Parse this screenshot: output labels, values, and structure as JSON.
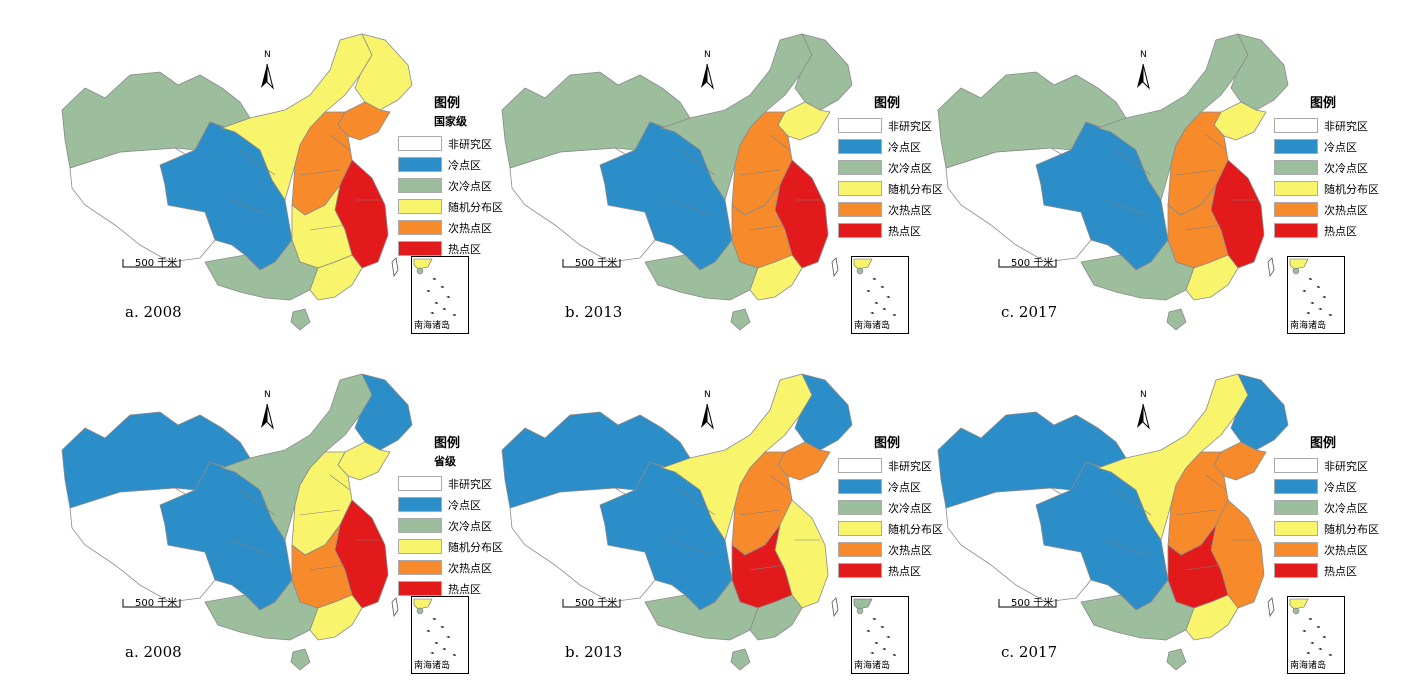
{
  "colors": {
    "non_study": "#ffffff",
    "cold": "#2b8ec8",
    "sub_cold": "#9dbe9c",
    "random": "#f8f56c",
    "sub_hot": "#f78a2b",
    "hot": "#e31a1c",
    "border": "#8a8a8a"
  },
  "legend": {
    "title": "图例",
    "items": [
      {
        "label": "非研究区",
        "class": "non_study"
      },
      {
        "label": "冷点区",
        "class": "cold"
      },
      {
        "label": "次冷点区",
        "class": "sub_cold"
      },
      {
        "label": "随机分布区",
        "class": "random"
      },
      {
        "label": "次热点区",
        "class": "sub_hot"
      },
      {
        "label": "热点区",
        "class": "hot"
      }
    ]
  },
  "north_label": "N",
  "scale_label": "500 千米",
  "inset_label": "南海诸岛",
  "panels": [
    {
      "caption": "a. 2008",
      "level": "国家级",
      "regions": {
        "northwest": "sub_cold",
        "xinjiang_tibet": "non_study",
        "sw_block": "cold",
        "inner_mongolia": "random",
        "heilongjiang": "random",
        "jilin_liaoning": "sub_hot",
        "north_plain": "sub_hot",
        "east_coast": "hot",
        "central": "random",
        "south": "sub_cold",
        "guangdong": "random",
        "hainan": "sub_cold"
      }
    },
    {
      "caption": "b. 2013",
      "level": "",
      "regions": {
        "northwest": "sub_cold",
        "xinjiang_tibet": "non_study",
        "sw_block": "cold",
        "inner_mongolia": "sub_cold",
        "heilongjiang": "sub_cold",
        "jilin_liaoning": "random",
        "north_plain": "sub_hot",
        "east_coast": "hot",
        "central": "sub_hot",
        "south": "sub_cold",
        "guangdong": "random",
        "hainan": "sub_cold"
      }
    },
    {
      "caption": "c. 2017",
      "level": "",
      "regions": {
        "northwest": "sub_cold",
        "xinjiang_tibet": "non_study",
        "sw_block": "cold",
        "inner_mongolia": "sub_cold",
        "heilongjiang": "sub_cold",
        "jilin_liaoning": "random",
        "north_plain": "sub_hot",
        "east_coast": "hot",
        "central": "sub_hot",
        "south": "sub_cold",
        "guangdong": "random",
        "hainan": "sub_cold"
      }
    },
    {
      "caption": "a. 2008",
      "level": "省级",
      "regions": {
        "northwest": "cold",
        "xinjiang_tibet": "non_study",
        "sw_block": "cold",
        "inner_mongolia": "sub_cold",
        "heilongjiang": "cold",
        "jilin_liaoning": "random",
        "north_plain": "random",
        "east_coast": "hot",
        "central": "sub_hot",
        "south": "sub_cold",
        "guangdong": "random",
        "hainan": "sub_cold"
      }
    },
    {
      "caption": "b. 2013",
      "level": "",
      "regions": {
        "northwest": "cold",
        "xinjiang_tibet": "non_study",
        "sw_block": "cold",
        "inner_mongolia": "random",
        "heilongjiang": "cold",
        "jilin_liaoning": "sub_hot",
        "north_plain": "sub_hot",
        "east_coast": "random",
        "central": "hot",
        "south": "sub_cold",
        "guangdong": "sub_cold",
        "hainan": "sub_cold"
      }
    },
    {
      "caption": "c. 2017",
      "level": "",
      "regions": {
        "northwest": "cold",
        "xinjiang_tibet": "non_study",
        "sw_block": "cold",
        "inner_mongolia": "random",
        "heilongjiang": "cold",
        "jilin_liaoning": "sub_hot",
        "north_plain": "sub_hot",
        "east_coast": "sub_hot",
        "central": "hot",
        "south": "sub_cold",
        "guangdong": "random",
        "hainan": "sub_cold"
      }
    }
  ]
}
